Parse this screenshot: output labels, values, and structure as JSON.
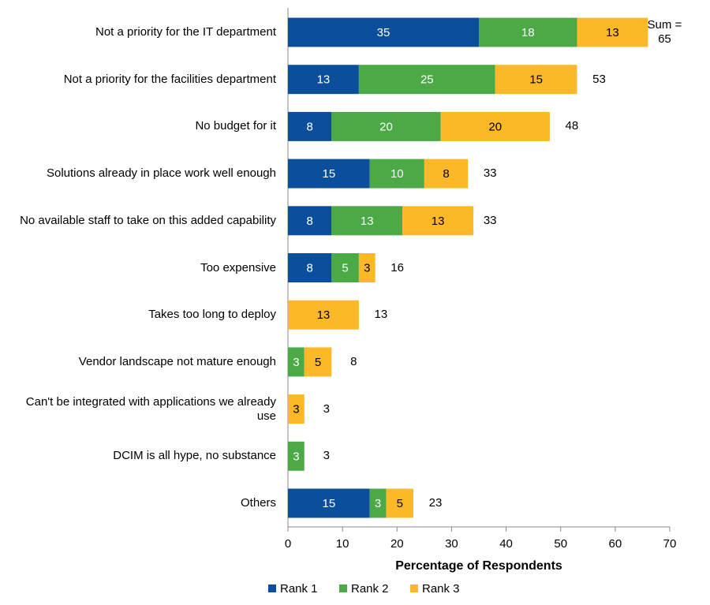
{
  "chart_data": {
    "type": "stacked-bar-horizontal",
    "categories": [
      "Not a priority for the IT department",
      "Not a priority for the facilities department",
      "No budget for it",
      "Solutions already in place work well enough",
      "No available staff to take on this added capability",
      "Too expensive",
      "Takes too long to deploy",
      "Vendor landscape not mature enough",
      "Can't be integrated with applications we already use",
      "DCIM is all hype, no substance",
      "Others"
    ],
    "series": [
      {
        "name": "Rank 1",
        "color": "#0b4f9c",
        "values": [
          35,
          13,
          8,
          15,
          8,
          8,
          null,
          null,
          null,
          null,
          15
        ]
      },
      {
        "name": "Rank 2",
        "color": "#4ba946",
        "values": [
          18,
          25,
          20,
          10,
          13,
          5,
          null,
          3,
          null,
          3,
          3
        ]
      },
      {
        "name": "Rank 3",
        "color": "#fdb827",
        "values": [
          13,
          15,
          20,
          8,
          13,
          3,
          13,
          5,
          3,
          null,
          5
        ]
      }
    ],
    "totals": {
      "values": [
        65,
        53,
        48,
        33,
        33,
        16,
        13,
        8,
        3,
        3,
        23
      ],
      "value_labels": [
        "Sum = 65",
        "53",
        "48",
        "33",
        "33",
        "16",
        "13",
        "8",
        "3",
        "3",
        "23"
      ]
    },
    "xlabel": "Percentage of Respondents",
    "xlim": [
      0,
      70
    ],
    "xticks": [
      0,
      10,
      20,
      30,
      40,
      50,
      60,
      70
    ],
    "legend": "bottom"
  }
}
